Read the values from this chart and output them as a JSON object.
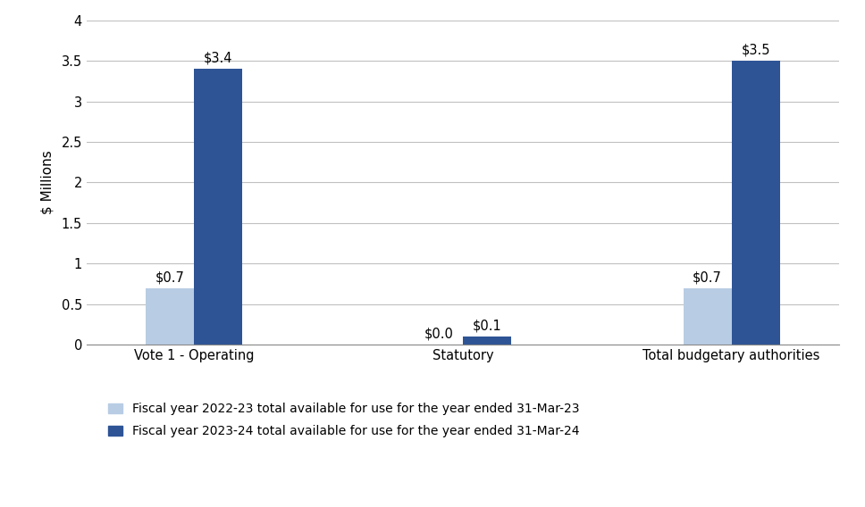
{
  "categories": [
    "Vote 1 - Operating",
    "Statutory",
    "Total budgetary authorities"
  ],
  "series": [
    {
      "label": "Fiscal year 2022-23 total available for use for the year ended 31-Mar-23",
      "values": [
        0.7,
        0.0,
        0.7
      ],
      "color": "#b8cce4",
      "annotations": [
        "$0.7",
        "$0.0",
        "$0.7"
      ]
    },
    {
      "label": "Fiscal year 2023-24 total available for use for the year ended 31-Mar-24",
      "values": [
        3.4,
        0.1,
        3.5
      ],
      "color": "#2e5496",
      "annotations": [
        "$3.4",
        "$0.1",
        "$3.5"
      ]
    }
  ],
  "ylabel": "$ Millions",
  "ylim": [
    0,
    4
  ],
  "yticks": [
    0,
    0.5,
    1.0,
    1.5,
    2.0,
    2.5,
    3.0,
    3.5,
    4.0
  ],
  "bar_width": 0.45,
  "group_positions": [
    1.0,
    3.5,
    6.0
  ],
  "xlim": [
    0.0,
    7.0
  ],
  "background_color": "#ffffff",
  "grid_color": "#c0c0c0",
  "annotation_fontsize": 10.5,
  "axis_label_fontsize": 11,
  "tick_fontsize": 10.5,
  "legend_fontsize": 10
}
